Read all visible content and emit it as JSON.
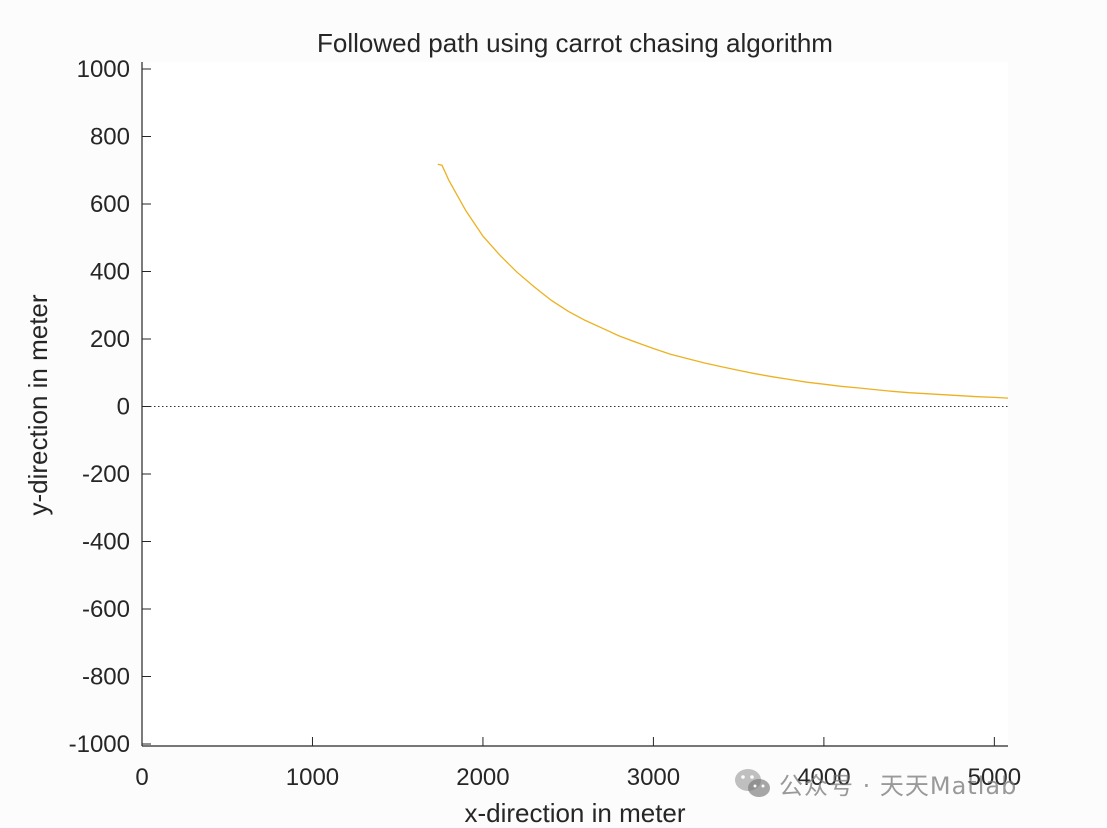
{
  "chart_data": {
    "type": "line",
    "title": "Followed path using carrot chasing algorithm",
    "xlabel": "x-direction in meter",
    "ylabel": "y-direction in meter",
    "xlim": [
      0,
      5080
    ],
    "ylim": [
      -1000,
      1000
    ],
    "xticks": [
      0,
      1000,
      2000,
      3000,
      4000,
      5000
    ],
    "xtick_labels": [
      "0",
      "1000",
      "2000",
      "3000",
      "4000",
      "5000"
    ],
    "yticks": [
      -1000,
      -800,
      -600,
      -400,
      -200,
      0,
      200,
      400,
      600,
      800,
      1000
    ],
    "ytick_labels": [
      "-1000",
      "-800",
      "-600",
      "-400",
      "-200",
      "0",
      "200",
      "400",
      "600",
      "800",
      "1000"
    ],
    "grid": false,
    "series": [
      {
        "color": "#edb120",
        "style": "solid",
        "x": [
          1735,
          1760,
          1800,
          1900,
          2000,
          2100,
          2200,
          2300,
          2400,
          2500,
          2600,
          2700,
          2800,
          2900,
          3000,
          3100,
          3200,
          3300,
          3400,
          3500,
          3600,
          3700,
          3800,
          3900,
          4000,
          4100,
          4200,
          4300,
          4400,
          4500,
          4600,
          4700,
          4800,
          4900,
          5000,
          5080
        ],
        "y": [
          718,
          715,
          670,
          580,
          505,
          448,
          398,
          355,
          315,
          282,
          255,
          232,
          209,
          190,
          172,
          155,
          142,
          129,
          118,
          107,
          97,
          88,
          80,
          72,
          66,
          60,
          55,
          50,
          45,
          41,
          38,
          35,
          32,
          29,
          27,
          25
        ]
      },
      {
        "color": "#333333",
        "style": "dotted",
        "x": [
          0,
          5080
        ],
        "y": [
          0,
          0
        ]
      }
    ]
  },
  "watermark": {
    "text": "公众号 · 天天Matlab",
    "icon": "wechat-icon"
  }
}
